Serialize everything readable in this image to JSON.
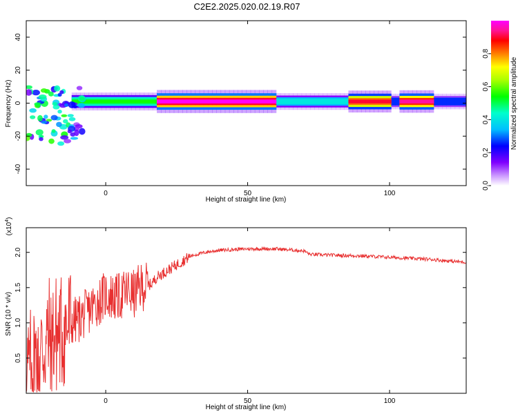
{
  "title": "C2E2.2025.020.02.19.R07",
  "colors": {
    "snr_line": "#e83030",
    "axis": "#000000",
    "spectrum_stops": [
      "#ffffff",
      "#cc99ff",
      "#8000ff",
      "#0000ff",
      "#00bfff",
      "#00ffcc",
      "#00ff00",
      "#aaff00",
      "#ffff00",
      "#ff8000",
      "#ff0000",
      "#ff1493",
      "#ff00ff"
    ]
  },
  "chart_data": [
    {
      "type": "heatmap",
      "title": "",
      "xlabel": "Height of straight line (km)",
      "ylabel": "Frequency (Hz)",
      "xlim": [
        -28,
        127
      ],
      "ylim": [
        -50,
        50
      ],
      "x_ticks": [
        0,
        50,
        100
      ],
      "x_tick_labels": [
        "0",
        "50",
        "100"
      ],
      "y_ticks": [
        -40,
        -20,
        0,
        20,
        40
      ],
      "y_tick_labels": [
        "-40",
        "-20",
        "0",
        "20",
        "40"
      ],
      "grid": false,
      "ridge": {
        "frequency_hz": 1,
        "segments": [
          {
            "x_start": -12,
            "x_end": 18,
            "amplitude": 0.55
          },
          {
            "x_start": 18,
            "x_end": 60,
            "amplitude": 1.0
          },
          {
            "x_start": 60,
            "x_end": 85,
            "amplitude": 0.45
          },
          {
            "x_start": 85,
            "x_end": 100,
            "amplitude": 0.9
          },
          {
            "x_start": 100,
            "x_end": 104,
            "amplitude": 0.35
          },
          {
            "x_start": 104,
            "x_end": 116,
            "amplitude": 0.95
          },
          {
            "x_start": 116,
            "x_end": 127,
            "amplitude": 0.35
          }
        ],
        "near_field_scatter": {
          "x_start": -28,
          "x_end": -12,
          "frequency_range": [
            -25,
            10
          ]
        }
      },
      "colorbar": {
        "label": "Normalized spectral amplitude",
        "range": [
          0,
          1
        ],
        "ticks": [
          0.0,
          0.2,
          0.4,
          0.6,
          0.8
        ],
        "tick_labels": [
          "0.0",
          "0.2",
          "0.4",
          "0.6",
          "0.8"
        ]
      }
    },
    {
      "type": "line",
      "title": "",
      "xlabel": "Height of straight line (km)",
      "ylabel": "SNR (10 * v/v)",
      "y_multiplier": "(x10",
      "y_multiplier_exp": "4",
      "y_multiplier_close": ")",
      "xlim": [
        -28,
        127
      ],
      "ylim": [
        0,
        2.35
      ],
      "x_ticks": [
        0,
        50,
        100
      ],
      "x_tick_labels": [
        "0",
        "50",
        "100"
      ],
      "y_ticks": [
        0.5,
        1.0,
        1.5,
        2.0
      ],
      "y_tick_labels": [
        "0.5",
        "1.0",
        "1.5",
        "2.0"
      ],
      "grid": false,
      "series": [
        {
          "x": [
            -28,
            -24,
            -20,
            -16,
            -12,
            -8,
            -4,
            0,
            4,
            8,
            10,
            12,
            16,
            18,
            22,
            26,
            30,
            35,
            40,
            50,
            60,
            70,
            72,
            80,
            90,
            100,
            105,
            110,
            115,
            120,
            127
          ],
          "y": [
            0.25,
            0.5,
            0.8,
            0.85,
            1.0,
            1.1,
            1.25,
            1.4,
            1.35,
            1.45,
            1.4,
            1.5,
            1.55,
            1.65,
            1.75,
            1.85,
            1.95,
            2.0,
            2.03,
            2.05,
            2.05,
            2.02,
            1.97,
            1.96,
            1.95,
            1.93,
            1.92,
            1.91,
            1.9,
            1.88,
            1.86
          ]
        }
      ]
    }
  ]
}
